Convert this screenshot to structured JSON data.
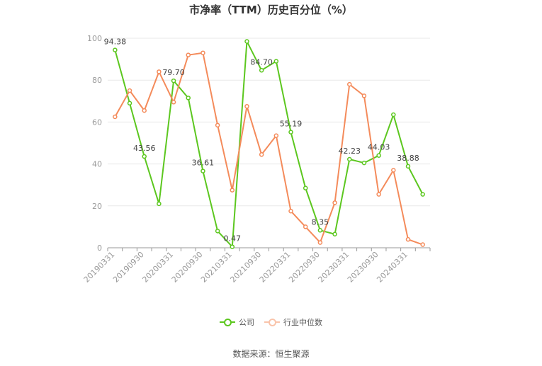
{
  "chart_data": {
    "type": "line",
    "title": "市净率（TTM）历史百分位（%）",
    "source": "数据来源：恒生聚源",
    "ylim": [
      0,
      100
    ],
    "yticks": [
      0,
      20,
      40,
      60,
      80,
      100
    ],
    "x": [
      "20190331",
      "20190630",
      "20190930",
      "20191231",
      "20200331",
      "20200630",
      "20200930",
      "20201231",
      "20210331",
      "20210630",
      "20210930",
      "20211231",
      "20220331",
      "20220630",
      "20220930",
      "20221231",
      "20230331",
      "20230630",
      "20230930",
      "20231231",
      "20240331",
      "20240630"
    ],
    "xticks": [
      "20190331",
      "20190930",
      "20200331",
      "20200930",
      "20210331",
      "20210930",
      "20220331",
      "20220930",
      "20230331",
      "20230930",
      "20240331"
    ],
    "series": [
      {
        "name": "公司",
        "color": "#5cc71f",
        "values": [
          94.38,
          69,
          43.56,
          21,
          79.7,
          71.5,
          36.61,
          8,
          0.47,
          98.5,
          84.7,
          89,
          55.19,
          28.5,
          8.35,
          6.5,
          42.23,
          40.5,
          44.03,
          63.5,
          38.88,
          25.5
        ],
        "labels": [
          "94.38",
          null,
          "43.56",
          null,
          "79.70",
          null,
          "36.61",
          null,
          "0.47",
          null,
          "84.70",
          null,
          "55.19",
          null,
          "8.35",
          null,
          "42.23",
          null,
          "44.03",
          null,
          "38.88",
          null
        ]
      },
      {
        "name": "行业中位数",
        "color": "#f48b5b",
        "values": [
          62.5,
          75,
          65.5,
          84,
          69.5,
          92,
          93,
          58.5,
          27.5,
          67.5,
          44.5,
          53.5,
          17.5,
          10,
          2.5,
          21.5,
          78,
          72.5,
          25.5,
          37,
          4,
          1.5
        ],
        "labels": []
      }
    ]
  }
}
